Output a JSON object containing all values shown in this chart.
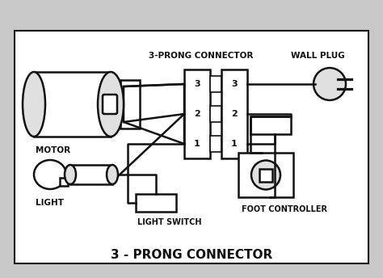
{
  "bg_color": "#d8d8d8",
  "diagram_bg": "#ffffff",
  "outer_bg": "#c8c8c8",
  "line_color": "#111111",
  "title": "3 - PRONG CONNECTOR",
  "connector_label": "3-PRONG CONNECTOR",
  "labels": {
    "motor": "MOTOR",
    "light": "LIGHT",
    "light_switch": "LIGHT SWITCH",
    "foot_controller": "FOOT CONTROLLER",
    "wall_plug": "WALL PLUG"
  }
}
